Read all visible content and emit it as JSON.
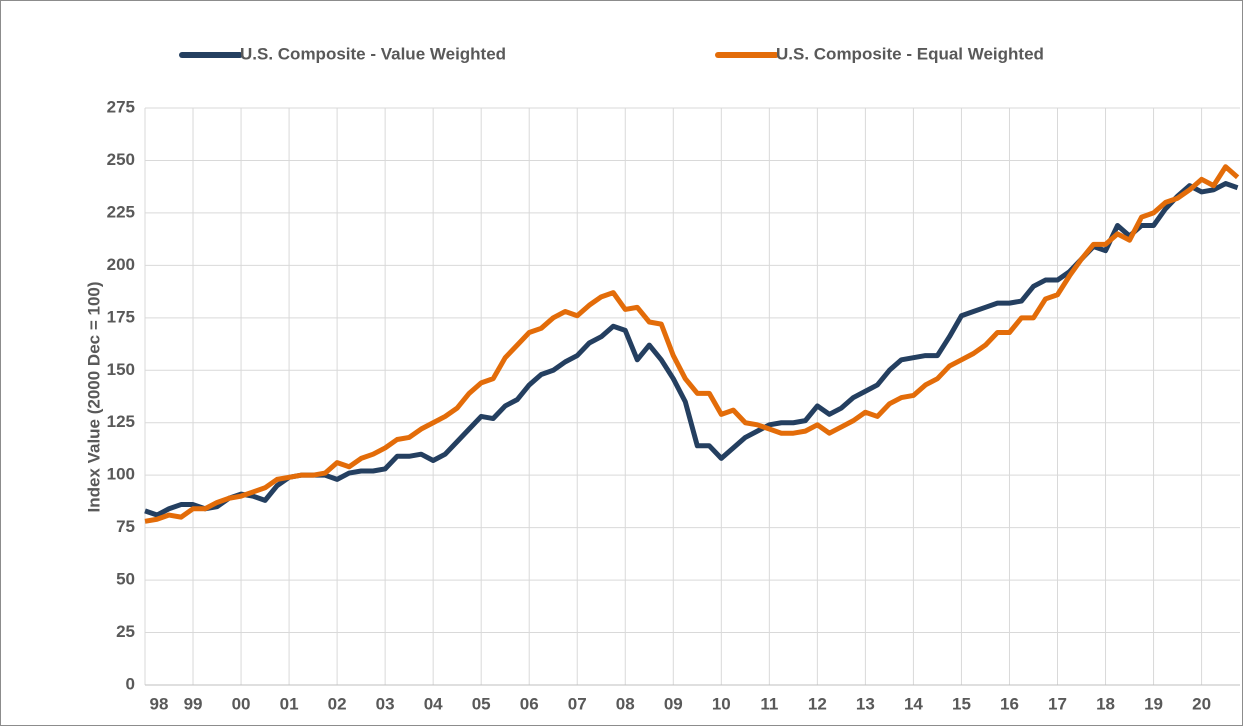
{
  "chart_data": {
    "type": "line",
    "y_label": "Index Value (2000 Dec = 100)",
    "x": [
      1998,
      1998.25,
      1998.5,
      1998.75,
      1999,
      1999.25,
      1999.5,
      1999.75,
      2000,
      2000.25,
      2000.5,
      2000.75,
      2001,
      2001.25,
      2001.5,
      2001.75,
      2002,
      2002.25,
      2002.5,
      2002.75,
      2003,
      2003.25,
      2003.5,
      2003.75,
      2004,
      2004.25,
      2004.5,
      2004.75,
      2005,
      2005.25,
      2005.5,
      2005.75,
      2006,
      2006.25,
      2006.5,
      2006.75,
      2007,
      2007.25,
      2007.5,
      2007.75,
      2008,
      2008.25,
      2008.5,
      2008.75,
      2009,
      2009.25,
      2009.5,
      2009.75,
      2010,
      2010.25,
      2010.5,
      2010.75,
      2011,
      2011.25,
      2011.5,
      2011.75,
      2012,
      2012.25,
      2012.5,
      2012.75,
      2013,
      2013.25,
      2013.5,
      2013.75,
      2014,
      2014.25,
      2014.5,
      2014.75,
      2015,
      2015.25,
      2015.5,
      2015.75,
      2016,
      2016.25,
      2016.5,
      2016.75,
      2017,
      2017.25,
      2017.5,
      2017.75,
      2018,
      2018.25,
      2018.5,
      2018.75,
      2019,
      2019.25,
      2019.5,
      2019.75,
      2020,
      2020.25,
      2020.5,
      2020.75
    ],
    "series": [
      {
        "name": "U.S. Composite - Value Weighted",
        "color": "#243f60",
        "values": [
          83,
          81,
          84,
          86,
          86,
          84,
          85,
          89,
          91,
          90,
          88,
          95,
          99,
          100,
          100,
          100,
          98,
          101,
          102,
          102,
          103,
          109,
          109,
          110,
          107,
          110,
          116,
          122,
          128,
          127,
          133,
          136,
          143,
          148,
          150,
          154,
          157,
          163,
          166,
          171,
          169,
          155,
          162,
          155,
          146,
          135,
          114,
          114,
          108,
          113,
          118,
          121,
          124,
          125,
          125,
          126,
          133,
          129,
          132,
          137,
          140,
          143,
          150,
          155,
          156,
          157,
          157,
          166,
          176,
          178,
          180,
          182,
          182,
          183,
          190,
          193,
          193,
          197,
          203,
          209,
          207,
          219,
          214,
          219,
          219,
          227,
          233,
          238,
          235,
          236,
          239,
          237
        ]
      },
      {
        "name": "U.S. Composite - Equal Weighted",
        "color": "#e36c09",
        "values": [
          78,
          79,
          81,
          80,
          84,
          84,
          87,
          89,
          90,
          92,
          94,
          98,
          99,
          100,
          100,
          101,
          106,
          104,
          108,
          110,
          113,
          117,
          118,
          122,
          125,
          128,
          132,
          139,
          144,
          146,
          156,
          162,
          168,
          170,
          175,
          178,
          176,
          181,
          185,
          187,
          179,
          180,
          173,
          172,
          157,
          146,
          139,
          139,
          129,
          131,
          125,
          124,
          122,
          120,
          120,
          121,
          124,
          120,
          123,
          126,
          130,
          128,
          134,
          137,
          138,
          143,
          146,
          152,
          155,
          158,
          162,
          168,
          168,
          175,
          175,
          184,
          186,
          195,
          203,
          210,
          210,
          215,
          212,
          223,
          225,
          230,
          232,
          236,
          241,
          238,
          247,
          242
        ]
      }
    ],
    "xlim": [
      1998,
      2020.8
    ],
    "xticks": [
      {
        "value": 1998,
        "label": "98"
      },
      {
        "value": 1999,
        "label": "99"
      },
      {
        "value": 2000,
        "label": "00"
      },
      {
        "value": 2001,
        "label": "01"
      },
      {
        "value": 2002,
        "label": "02"
      },
      {
        "value": 2003,
        "label": "03"
      },
      {
        "value": 2004,
        "label": "04"
      },
      {
        "value": 2005,
        "label": "05"
      },
      {
        "value": 2006,
        "label": "06"
      },
      {
        "value": 2007,
        "label": "07"
      },
      {
        "value": 2008,
        "label": "08"
      },
      {
        "value": 2009,
        "label": "09"
      },
      {
        "value": 2010,
        "label": "10"
      },
      {
        "value": 2011,
        "label": "11"
      },
      {
        "value": 2012,
        "label": "12"
      },
      {
        "value": 2013,
        "label": "13"
      },
      {
        "value": 2014,
        "label": "14"
      },
      {
        "value": 2015,
        "label": "15"
      },
      {
        "value": 2016,
        "label": "16"
      },
      {
        "value": 2017,
        "label": "17"
      },
      {
        "value": 2018,
        "label": "18"
      },
      {
        "value": 2019,
        "label": "19"
      },
      {
        "value": 2020,
        "label": "20"
      }
    ],
    "ylim": [
      0,
      275
    ],
    "yticks": [
      0,
      25,
      50,
      75,
      100,
      125,
      150,
      175,
      200,
      225,
      250,
      275
    ],
    "grid": true,
    "legend": "top"
  }
}
